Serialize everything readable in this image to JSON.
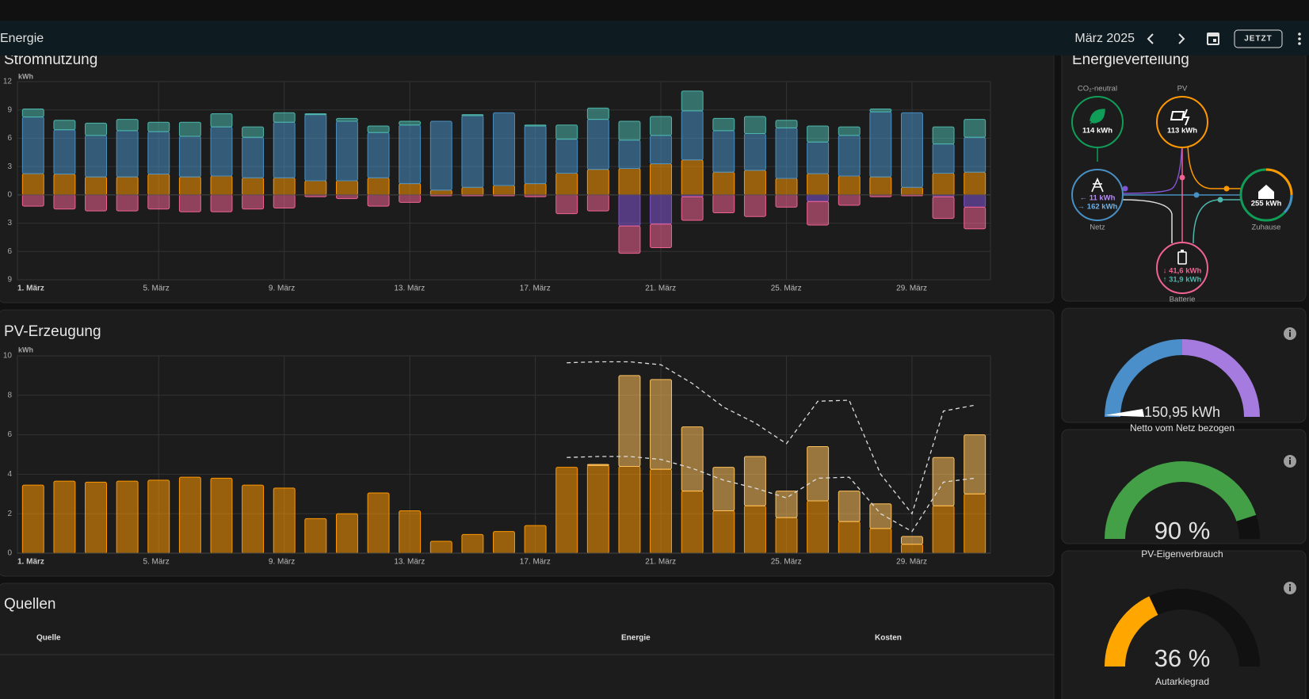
{
  "header": {
    "title": "Energie",
    "period": "März 2025",
    "button": "JETZT"
  },
  "stromnutzung": {
    "type": "bar",
    "stacked": true,
    "title": "Stromnutzung",
    "unit": "kWh",
    "categories": [
      "1. März",
      null,
      null,
      null,
      "5. März",
      null,
      null,
      null,
      "9. März",
      null,
      null,
      null,
      "13. März",
      null,
      null,
      null,
      "17. März",
      null,
      null,
      null,
      "21. März",
      null,
      null,
      null,
      "25. März",
      null,
      null,
      null,
      "29. März",
      null,
      null
    ],
    "series": [
      {
        "color": "#ff9800",
        "values": [
          2.25,
          2.2,
          1.9,
          1.9,
          2.2,
          1.9,
          2.0,
          1.8,
          1.8,
          1.5,
          1.5,
          1.8,
          1.2,
          0.5,
          0.8,
          1.0,
          1.2,
          2.3,
          2.7,
          2.8,
          3.3,
          3.7,
          2.4,
          2.6,
          1.75,
          2.25,
          2.0,
          1.9,
          0.8,
          2.3,
          2.4
        ]
      },
      {
        "color": "#488fc2",
        "values": [
          6.0,
          4.7,
          4.4,
          4.9,
          4.5,
          4.3,
          5.2,
          4.3,
          5.9,
          7.0,
          6.3,
          4.8,
          6.2,
          7.3,
          7.6,
          7.7,
          6.1,
          3.6,
          5.3,
          3.0,
          3.0,
          5.2,
          4.4,
          3.9,
          5.35,
          3.35,
          4.3,
          6.9,
          7.9,
          3.1,
          3.7
        ]
      },
      {
        "color": "#4db6ac",
        "values": [
          0.85,
          1.0,
          1.3,
          1.2,
          1.0,
          1.5,
          1.4,
          1.1,
          1.0,
          0.1,
          0.3,
          0.7,
          0.4,
          0,
          0.1,
          0,
          0.1,
          1.5,
          1.2,
          2.0,
          2.0,
          2.1,
          1.3,
          1.8,
          0.8,
          1.7,
          0.9,
          0.3,
          0,
          1.8,
          1.9
        ]
      },
      {
        "color": "#8353d1",
        "values": [
          0,
          0,
          0,
          0,
          0,
          0,
          0,
          0,
          0,
          0,
          0,
          0,
          0,
          0,
          0,
          0,
          0,
          0,
          0,
          -3.3,
          -3.1,
          -0.2,
          0,
          0,
          0,
          -0.7,
          0,
          0,
          0,
          -0.2,
          -1.3
        ]
      },
      {
        "color": "#f06292",
        "values": [
          -1.2,
          -1.5,
          -1.7,
          -1.7,
          -1.5,
          -1.8,
          -1.8,
          -1.5,
          -1.4,
          -0.2,
          -0.4,
          -1.2,
          -0.8,
          -0.1,
          -0.1,
          -0.1,
          -0.2,
          -2.0,
          -1.7,
          -2.9,
          -2.5,
          -2.5,
          -1.9,
          -2.3,
          -1.3,
          -2.5,
          -1.1,
          -0.2,
          -0.1,
          -2.3,
          -2.3
        ]
      }
    ],
    "ylim": [
      -9,
      12
    ],
    "yticks": [
      {
        "value": -9,
        "label": "9"
      },
      {
        "value": -6,
        "label": "6"
      },
      {
        "value": -3,
        "label": "3"
      },
      0,
      3,
      6,
      9,
      12
    ],
    "grid": true
  },
  "pv_erzeugung": {
    "type": "bar",
    "stacked": true,
    "title": "PV-Erzeugung",
    "unit": "kWh",
    "categories": [
      "1. März",
      null,
      null,
      null,
      "5. März",
      null,
      null,
      null,
      "9. März",
      null,
      null,
      null,
      "13. März",
      null,
      null,
      null,
      "17. März",
      null,
      null,
      null,
      "21. März",
      null,
      null,
      null,
      "25. März",
      null,
      null,
      null,
      "29. März",
      null,
      null
    ],
    "series": [
      {
        "color": "#ff9800",
        "values": [
          3.45,
          3.65,
          3.6,
          3.65,
          3.7,
          3.85,
          3.8,
          3.45,
          3.3,
          1.75,
          2.0,
          3.05,
          2.15,
          0.6,
          0.95,
          1.1,
          1.4,
          4.35,
          4.45,
          4.4,
          4.25,
          3.15,
          2.15,
          2.4,
          1.8,
          2.65,
          1.6,
          1.25,
          0.45,
          2.4,
          3.0
        ]
      },
      {
        "color": "#ffc15b",
        "values": [
          0,
          0,
          0,
          0,
          0,
          0,
          0,
          0,
          0,
          0,
          0,
          0,
          0,
          0,
          0,
          0,
          0,
          0,
          0.05,
          4.6,
          4.55,
          3.25,
          2.2,
          2.5,
          1.35,
          2.75,
          1.55,
          1.25,
          0.4,
          2.45,
          3.0
        ]
      },
      {
        "type": "line",
        "dashed": true,
        "color": "#dddddd",
        "values": [
          null,
          null,
          null,
          null,
          null,
          null,
          null,
          null,
          null,
          null,
          null,
          null,
          null,
          null,
          null,
          null,
          null,
          9.65,
          9.7,
          9.7,
          9.55,
          8.6,
          7.4,
          6.6,
          5.55,
          7.7,
          7.75,
          4.0,
          2.0,
          7.2,
          7.5
        ]
      },
      {
        "type": "line",
        "dashed": true,
        "color": "#dddddd",
        "values": [
          null,
          null,
          null,
          null,
          null,
          null,
          null,
          null,
          null,
          null,
          null,
          null,
          null,
          null,
          null,
          null,
          null,
          4.85,
          4.9,
          4.9,
          4.75,
          4.3,
          3.7,
          3.3,
          2.8,
          3.8,
          3.85,
          2.0,
          1.1,
          3.6,
          3.8
        ]
      }
    ],
    "ylim": [
      0,
      10
    ],
    "yticks": [
      0,
      2,
      4,
      6,
      8,
      10
    ],
    "grid": true
  },
  "energieverteilung": {
    "title": "Energieverteilung",
    "co2": {
      "label": "CO₂-neutral",
      "value": "114 kWh"
    },
    "pv": {
      "label": "PV",
      "value": "113 kWh"
    },
    "netz": {
      "label": "Netz",
      "values": [
        "← 11 kWh",
        "→ 162 kWh"
      ]
    },
    "zuhause": {
      "label": "Zuhause",
      "value": "255 kWh"
    },
    "batterie": {
      "label": "Batterie",
      "values": [
        "↓ 41,6 kWh",
        "↑ 31,9 kWh"
      ]
    }
  },
  "gauges": [
    {
      "value_label": "150,95 kWh",
      "label": "Netto vom Netz bezogen"
    },
    {
      "value": 90,
      "value_label": "90 %",
      "label": "PV-Eigenverbrauch",
      "color": "#43a047"
    },
    {
      "value": 36,
      "value_label": "36 %",
      "label": "Autarkiegrad",
      "color": "#ffa600"
    }
  ],
  "quellen": {
    "title": "Quellen",
    "columns": [
      "Quelle",
      "Energie",
      "Kosten"
    ]
  }
}
